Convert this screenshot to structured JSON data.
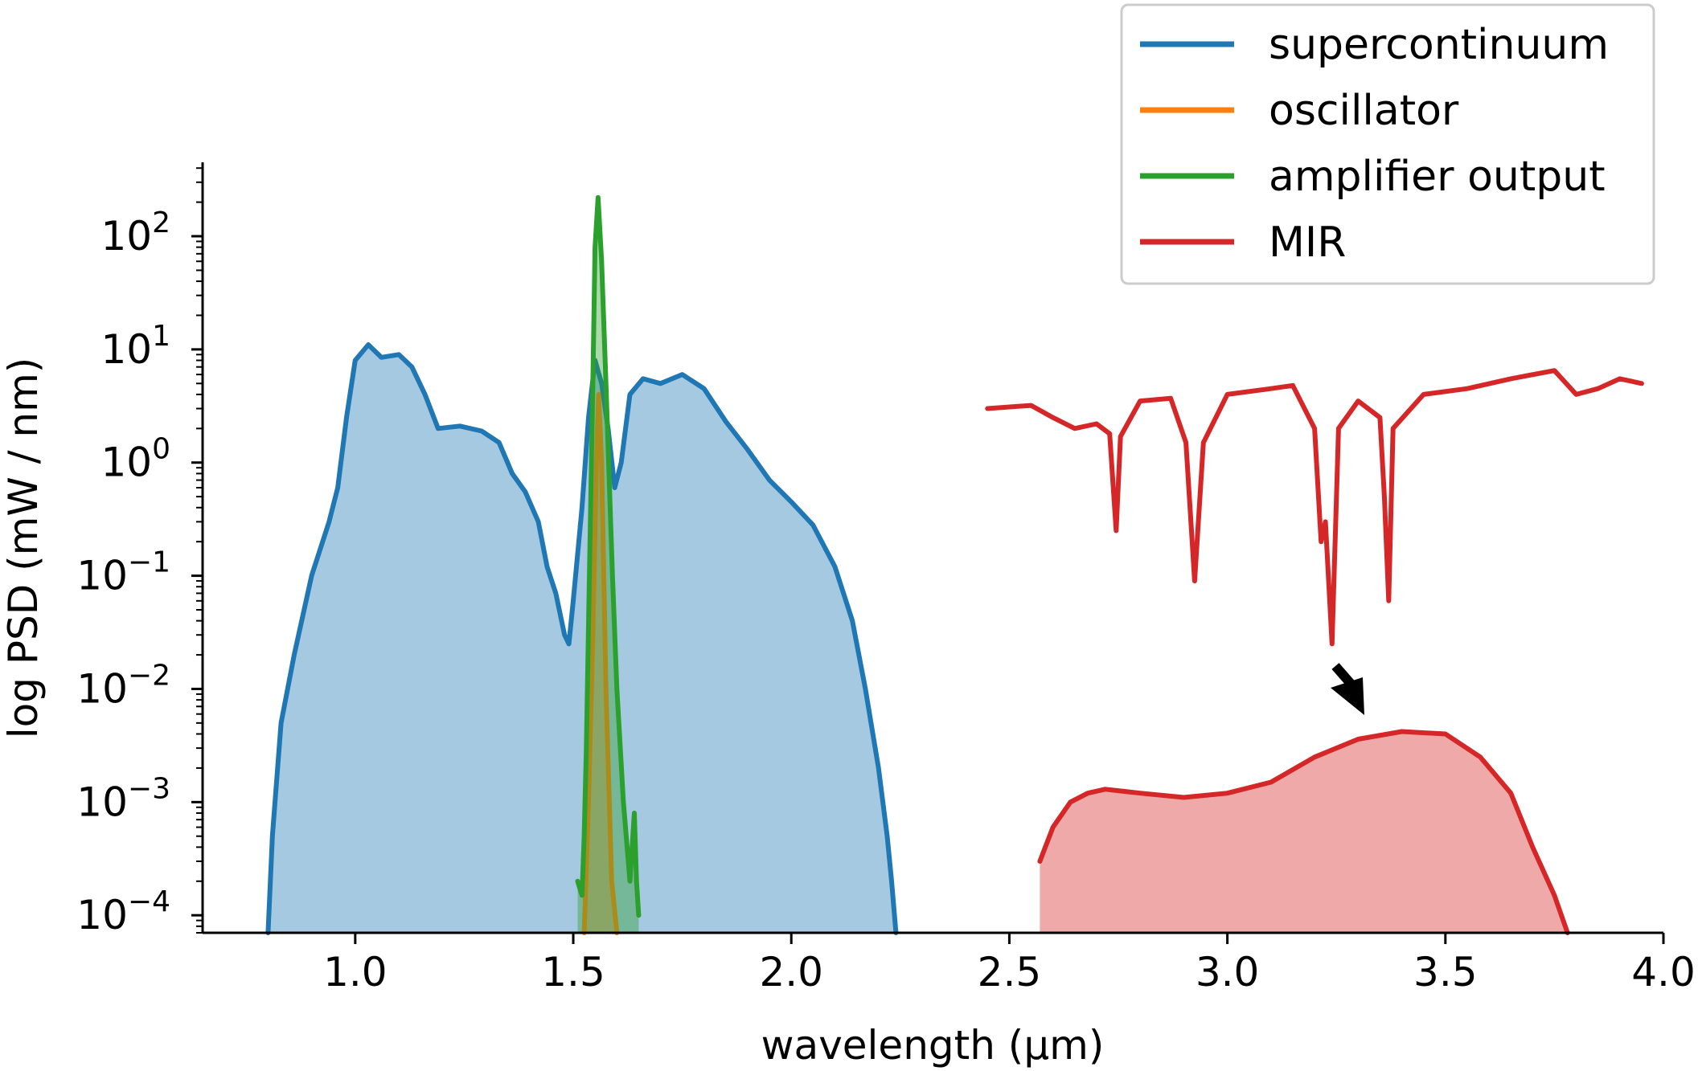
{
  "chart_data": {
    "type": "line",
    "xlabel": "wavelength (µm)",
    "ylabel": "log PSD (mW / nm)",
    "xlim": [
      0.65,
      4.0
    ],
    "ylim": [
      7e-05,
      450
    ],
    "yscale": "log",
    "grid": false,
    "legend_position": "top-right",
    "x_ticks": [
      {
        "value": 1.0,
        "label": "1.0"
      },
      {
        "value": 1.5,
        "label": "1.5"
      },
      {
        "value": 2.0,
        "label": "2.0"
      },
      {
        "value": 2.5,
        "label": "2.5"
      },
      {
        "value": 3.0,
        "label": "3.0"
      },
      {
        "value": 3.5,
        "label": "3.5"
      },
      {
        "value": 4.0,
        "label": "4.0"
      }
    ],
    "y_ticks": [
      {
        "value": 0.0001,
        "base": "10",
        "exp": "−4"
      },
      {
        "value": 0.001,
        "base": "10",
        "exp": "−3"
      },
      {
        "value": 0.01,
        "base": "10",
        "exp": "−2"
      },
      {
        "value": 0.1,
        "base": "10",
        "exp": "−1"
      },
      {
        "value": 1,
        "base": "10",
        "exp": "0"
      },
      {
        "value": 10,
        "base": "10",
        "exp": "1"
      },
      {
        "value": 100,
        "base": "10",
        "exp": "2"
      }
    ],
    "series": [
      {
        "name": "supercontinuum",
        "color": "#1f77b4",
        "fill": true,
        "points": [
          [
            0.8,
            7e-05
          ],
          [
            0.81,
            0.0005
          ],
          [
            0.83,
            0.005
          ],
          [
            0.86,
            0.02
          ],
          [
            0.9,
            0.1
          ],
          [
            0.94,
            0.3
          ],
          [
            0.96,
            0.6
          ],
          [
            0.98,
            2.5
          ],
          [
            1.0,
            8
          ],
          [
            1.03,
            11
          ],
          [
            1.06,
            8.5
          ],
          [
            1.1,
            9
          ],
          [
            1.13,
            7
          ],
          [
            1.16,
            4
          ],
          [
            1.19,
            2
          ],
          [
            1.24,
            2.1
          ],
          [
            1.29,
            1.9
          ],
          [
            1.33,
            1.5
          ],
          [
            1.36,
            0.8
          ],
          [
            1.39,
            0.55
          ],
          [
            1.42,
            0.3
          ],
          [
            1.44,
            0.12
          ],
          [
            1.46,
            0.07
          ],
          [
            1.48,
            0.03
          ],
          [
            1.49,
            0.025
          ],
          [
            1.5,
            0.06
          ],
          [
            1.52,
            0.4
          ],
          [
            1.535,
            2.5
          ],
          [
            1.55,
            8
          ],
          [
            1.565,
            5
          ],
          [
            1.58,
            2
          ],
          [
            1.595,
            0.6
          ],
          [
            1.61,
            1
          ],
          [
            1.63,
            4
          ],
          [
            1.66,
            5.5
          ],
          [
            1.7,
            5
          ],
          [
            1.75,
            6
          ],
          [
            1.8,
            4.5
          ],
          [
            1.85,
            2.3
          ],
          [
            1.9,
            1.3
          ],
          [
            1.95,
            0.7
          ],
          [
            2.0,
            0.45
          ],
          [
            2.05,
            0.28
          ],
          [
            2.1,
            0.12
          ],
          [
            2.14,
            0.04
          ],
          [
            2.17,
            0.01
          ],
          [
            2.2,
            0.002
          ],
          [
            2.22,
            0.0005
          ],
          [
            2.23,
            0.0002
          ],
          [
            2.24,
            7e-05
          ]
        ]
      },
      {
        "name": "oscillator",
        "color": "#ff7f0e",
        "fill": true,
        "points": [
          [
            1.525,
            7e-05
          ],
          [
            1.535,
            0.001
          ],
          [
            1.545,
            0.03
          ],
          [
            1.553,
            1.0
          ],
          [
            1.558,
            4.0
          ],
          [
            1.565,
            1.0
          ],
          [
            1.575,
            0.01
          ],
          [
            1.588,
            0.0002
          ],
          [
            1.6,
            7e-05
          ]
        ]
      },
      {
        "name": "amplifier output",
        "color": "#2ca02c",
        "fill": true,
        "points": [
          [
            1.51,
            0.0002
          ],
          [
            1.52,
            0.00015
          ],
          [
            1.525,
            0.0005
          ],
          [
            1.53,
            0.003
          ],
          [
            1.537,
            0.1
          ],
          [
            1.545,
            5
          ],
          [
            1.55,
            80
          ],
          [
            1.557,
            220
          ],
          [
            1.565,
            60
          ],
          [
            1.575,
            5
          ],
          [
            1.59,
            0.1
          ],
          [
            1.6,
            0.01
          ],
          [
            1.615,
            0.001
          ],
          [
            1.63,
            0.0002
          ],
          [
            1.64,
            0.0008
          ],
          [
            1.645,
            0.0002
          ],
          [
            1.65,
            0.0001
          ]
        ]
      },
      {
        "name": "MIR",
        "color": "#d62728",
        "fill": true,
        "points": [
          [
            2.57,
            0.0003
          ],
          [
            2.6,
            0.0006
          ],
          [
            2.64,
            0.001
          ],
          [
            2.68,
            0.0012
          ],
          [
            2.72,
            0.0013
          ],
          [
            2.8,
            0.0012
          ],
          [
            2.9,
            0.0011
          ],
          [
            3.0,
            0.0012
          ],
          [
            3.1,
            0.0015
          ],
          [
            3.2,
            0.0025
          ],
          [
            3.3,
            0.0036
          ],
          [
            3.4,
            0.0042
          ],
          [
            3.5,
            0.004
          ],
          [
            3.58,
            0.0025
          ],
          [
            3.65,
            0.0012
          ],
          [
            3.7,
            0.0004
          ],
          [
            3.75,
            0.00015
          ],
          [
            3.78,
            7e-05
          ]
        ]
      },
      {
        "name": "",
        "color": "#d62728",
        "fill": false,
        "points": [
          [
            2.45,
            3
          ],
          [
            2.55,
            3.2
          ],
          [
            2.6,
            2.5
          ],
          [
            2.65,
            2
          ],
          [
            2.7,
            2.2
          ],
          [
            2.73,
            1.8
          ],
          [
            2.745,
            0.25
          ],
          [
            2.755,
            1.7
          ],
          [
            2.8,
            3.5
          ],
          [
            2.87,
            3.7
          ],
          [
            2.905,
            1.5
          ],
          [
            2.925,
            0.09
          ],
          [
            2.945,
            1.5
          ],
          [
            3.0,
            4
          ],
          [
            3.1,
            4.5
          ],
          [
            3.15,
            4.8
          ],
          [
            3.2,
            2
          ],
          [
            3.215,
            0.2
          ],
          [
            3.225,
            0.3
          ],
          [
            3.24,
            0.025
          ],
          [
            3.255,
            2
          ],
          [
            3.3,
            3.5
          ],
          [
            3.35,
            2.5
          ],
          [
            3.36,
            0.5
          ],
          [
            3.37,
            0.06
          ],
          [
            3.38,
            2
          ],
          [
            3.45,
            4
          ],
          [
            3.55,
            4.5
          ],
          [
            3.65,
            5.5
          ],
          [
            3.75,
            6.5
          ],
          [
            3.8,
            4
          ],
          [
            3.85,
            4.5
          ],
          [
            3.9,
            5.5
          ],
          [
            3.95,
            5
          ]
        ]
      }
    ]
  }
}
